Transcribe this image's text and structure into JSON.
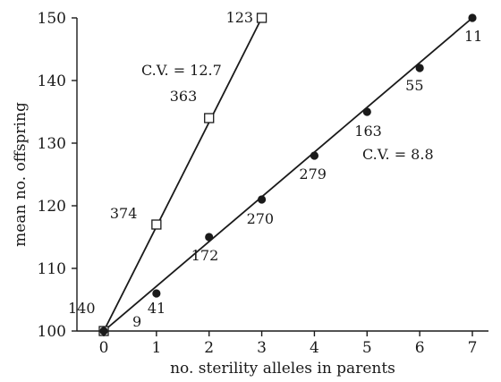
{
  "chart_data": {
    "type": "line",
    "xlabel": "no. sterility alleles in parents",
    "ylabel": "mean no. offspring",
    "xlim": [
      0,
      7
    ],
    "ylim": [
      100,
      150
    ],
    "x_ticks": [
      0,
      1,
      2,
      3,
      4,
      5,
      6,
      7
    ],
    "y_ticks": [
      100,
      110,
      120,
      130,
      140,
      150
    ],
    "grid": false,
    "legend": "none",
    "series": [
      {
        "marker": "open-square",
        "x": [
          0,
          1,
          2,
          3
        ],
        "y": [
          100,
          117,
          134,
          150
        ],
        "labels": [
          "140",
          "374",
          "363",
          "123"
        ],
        "annotation": "C.V. = 12.7"
      },
      {
        "marker": "filled-circle",
        "x": [
          0,
          1,
          2,
          3,
          4,
          5,
          6,
          7
        ],
        "y": [
          100,
          106,
          115,
          121,
          128,
          135,
          142,
          150
        ],
        "labels": [
          "9",
          "41",
          "172",
          "270",
          "279",
          "163",
          "55",
          "11"
        ],
        "annotation": "C.V. = 8.8"
      }
    ]
  }
}
